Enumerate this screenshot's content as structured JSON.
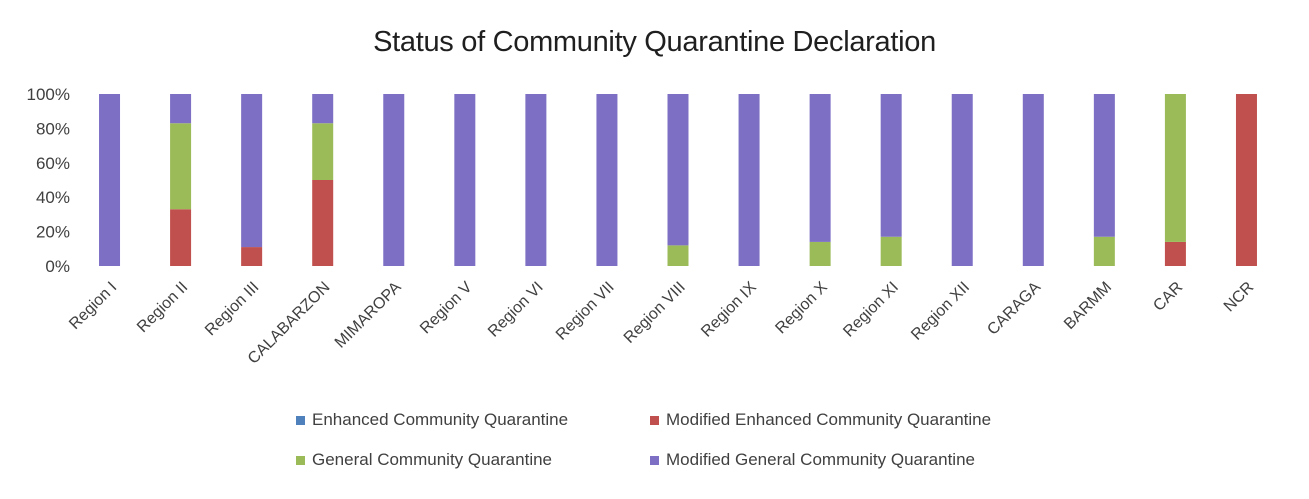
{
  "chart_data": {
    "type": "bar",
    "stacked": true,
    "title": "Status of Community Quarantine Declaration",
    "xlabel": "",
    "ylabel": "",
    "ylim": [
      0,
      100
    ],
    "yticks": [
      "0%",
      "20%",
      "40%",
      "60%",
      "80%",
      "100%"
    ],
    "categories": [
      "Region I",
      "Region II",
      "Region III",
      "CALABARZON",
      "MIMAROPA",
      "Region V",
      "Region VI",
      "Region VII",
      "Region VIII",
      "Region IX",
      "Region X",
      "Region XI",
      "Region XII",
      "CARAGA",
      "BARMM",
      "CAR",
      "NCR"
    ],
    "series": [
      {
        "name": "Enhanced Community Quarantine",
        "color": "#4f81bd",
        "values": [
          0,
          0,
          0,
          0,
          0,
          0,
          0,
          0,
          0,
          0,
          0,
          0,
          0,
          0,
          0,
          0,
          0
        ]
      },
      {
        "name": "Modified Enhanced Community Quarantine",
        "color": "#c0504d",
        "values": [
          0,
          33,
          11,
          50,
          0,
          0,
          0,
          0,
          0,
          0,
          0,
          0,
          0,
          0,
          0,
          14,
          100
        ]
      },
      {
        "name": "General Community Quarantine",
        "color": "#9bbb59",
        "values": [
          0,
          50,
          0,
          33,
          0,
          0,
          0,
          0,
          12,
          0,
          14,
          17,
          0,
          0,
          17,
          86,
          0
        ]
      },
      {
        "name": "Modified General Community Quarantine",
        "color": "#7c6fc4",
        "values": [
          100,
          17,
          89,
          17,
          100,
          100,
          100,
          100,
          88,
          100,
          86,
          83,
          100,
          100,
          83,
          0,
          0
        ]
      }
    ],
    "legend_position": "bottom",
    "grid": false
  }
}
